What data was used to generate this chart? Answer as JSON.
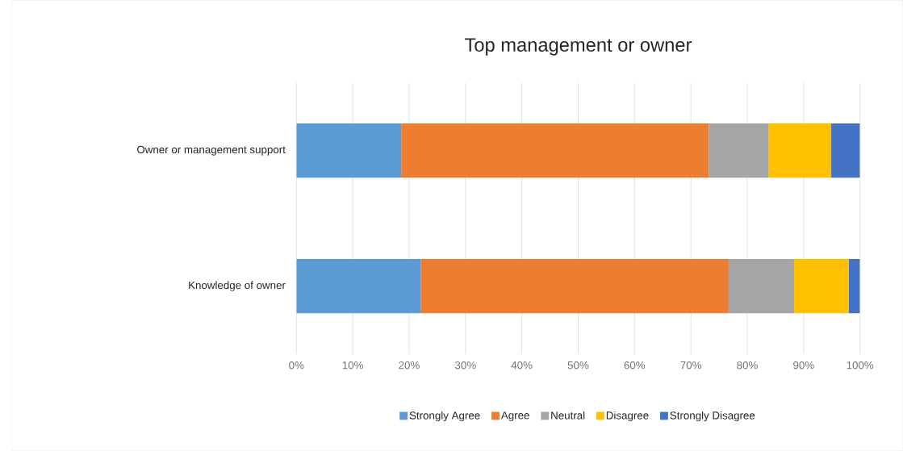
{
  "chart_data": {
    "type": "bar",
    "orientation": "horizontal",
    "stacked": true,
    "title": "Top management or owner",
    "categories": [
      "Owner or management support",
      "Knowledge of owner"
    ],
    "series": [
      {
        "name": "Strongly Agree",
        "color": "#5b9bd5",
        "values": [
          18.6,
          22.1
        ]
      },
      {
        "name": "Agree",
        "color": "#ed7d31",
        "values": [
          54.6,
          54.6
        ]
      },
      {
        "name": "Neutral",
        "color": "#a5a5a5",
        "values": [
          10.6,
          11.6
        ]
      },
      {
        "name": "Disagree",
        "color": "#ffc000",
        "values": [
          11.1,
          9.7
        ]
      },
      {
        "name": "Strongly Disagree",
        "color": "#4472c4",
        "values": [
          5.1,
          2.0
        ]
      }
    ],
    "xlim": [
      0,
      100
    ],
    "xticks": [
      {
        "value": 0,
        "label": "0%"
      },
      {
        "value": 10,
        "label": "10%"
      },
      {
        "value": 20,
        "label": "20%"
      },
      {
        "value": 30,
        "label": "30%"
      },
      {
        "value": 40,
        "label": "40%"
      },
      {
        "value": 50,
        "label": "50%"
      },
      {
        "value": 60,
        "label": "60%"
      },
      {
        "value": 70,
        "label": "70%"
      },
      {
        "value": 80,
        "label": "80%"
      },
      {
        "value": 90,
        "label": "90%"
      },
      {
        "value": 100,
        "label": "100%"
      }
    ],
    "grid": "x",
    "legend": "bottom"
  }
}
